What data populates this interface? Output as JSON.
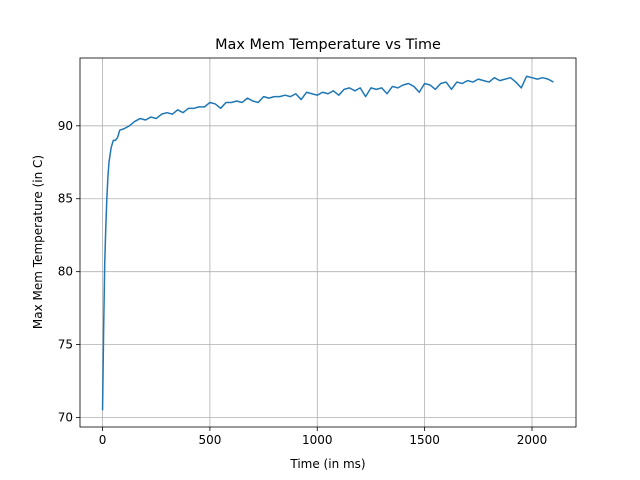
{
  "chart_data": {
    "type": "line",
    "title": "Max Mem Temperature vs Time",
    "x_label": "Time (in ms)",
    "y_label": "Max Mem Temperature (in C)",
    "grid": true,
    "xlim": [
      -105,
      2205
    ],
    "xticks": [
      0,
      500,
      1000,
      1500,
      2000
    ],
    "ylim": [
      69.35,
      94.65
    ],
    "yticks": [
      70,
      75,
      80,
      85,
      90
    ],
    "series": [
      {
        "color": "#1f77b4",
        "x": [
          0,
          5,
          10,
          15,
          20,
          25,
          30,
          40,
          50,
          60,
          70,
          80,
          100,
          125,
          150,
          175,
          200,
          225,
          250,
          275,
          300,
          325,
          350,
          375,
          400,
          425,
          450,
          475,
          500,
          525,
          550,
          575,
          600,
          625,
          650,
          675,
          700,
          725,
          750,
          775,
          800,
          825,
          850,
          875,
          900,
          925,
          950,
          975,
          1000,
          1025,
          1050,
          1075,
          1100,
          1125,
          1150,
          1175,
          1200,
          1225,
          1250,
          1275,
          1300,
          1325,
          1350,
          1375,
          1400,
          1425,
          1450,
          1475,
          1500,
          1525,
          1550,
          1575,
          1600,
          1625,
          1650,
          1675,
          1700,
          1725,
          1750,
          1775,
          1800,
          1825,
          1850,
          1875,
          1900,
          1925,
          1950,
          1975,
          2000,
          2025,
          2050,
          2075,
          2100
        ],
        "values": [
          70.5,
          76,
          80.5,
          83,
          85,
          86.5,
          87.5,
          88.5,
          89,
          89,
          89.2,
          89.7,
          89.8,
          90.0,
          90.3,
          90.5,
          90.4,
          90.6,
          90.5,
          90.8,
          90.9,
          90.8,
          91.1,
          90.9,
          91.2,
          91.2,
          91.3,
          91.3,
          91.6,
          91.5,
          91.2,
          91.6,
          91.6,
          91.7,
          91.6,
          91.9,
          91.7,
          91.6,
          92.0,
          91.9,
          92.0,
          92.0,
          92.1,
          92.0,
          92.2,
          91.8,
          92.3,
          92.2,
          92.1,
          92.3,
          92.2,
          92.4,
          92.1,
          92.5,
          92.6,
          92.4,
          92.6,
          92.0,
          92.6,
          92.5,
          92.6,
          92.2,
          92.7,
          92.6,
          92.8,
          92.9,
          92.7,
          92.3,
          92.9,
          92.8,
          92.5,
          92.9,
          93.0,
          92.5,
          93.0,
          92.9,
          93.1,
          93.0,
          93.2,
          93.1,
          93.0,
          93.3,
          93.1,
          93.2,
          93.3,
          93.0,
          92.6,
          93.4,
          93.3,
          93.2,
          93.3,
          93.2,
          93.0
        ]
      }
    ]
  }
}
